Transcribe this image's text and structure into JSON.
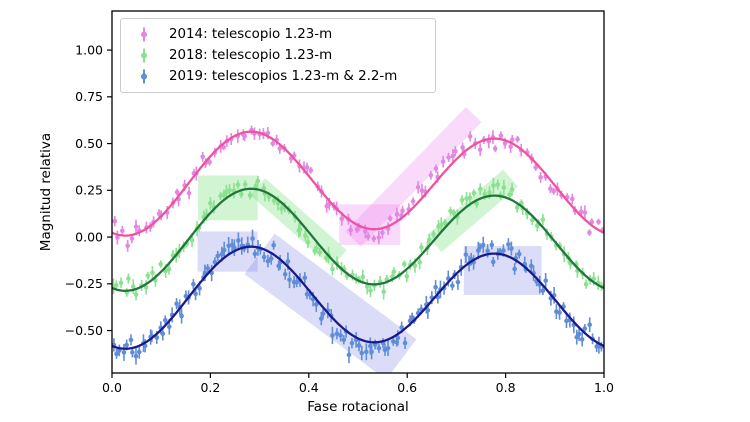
{
  "axes": {
    "xlim": [
      0.0,
      1.0
    ],
    "ylim": [
      -0.727,
      1.209
    ],
    "xticks": [
      0.0,
      0.2,
      0.4,
      0.6,
      0.8,
      1.0
    ],
    "xtick_labels": [
      "0.0",
      "0.2",
      "0.4",
      "0.6",
      "0.8",
      "1.0"
    ],
    "yticks": [
      1.0,
      0.75,
      0.5,
      0.25,
      0.0,
      -0.25,
      -0.5
    ],
    "ytick_labels": [
      "1.00",
      "0.75",
      "0.50",
      "0.25",
      "0.00",
      "−0.25",
      "−0.50"
    ]
  },
  "chart_data": {
    "type": "scatter",
    "title": "",
    "xlabel": "Fase rotacional",
    "ylabel": "Magnitud relativa",
    "legend_position": "upper left",
    "grid": false,
    "description": "Three asteroid rotational light curves (relative magnitude vs rotational phase), each with error-bar scatter points, a smooth two-maxima Fourier fit curve, and translucent highlight patches marking deviating segments.",
    "series": [
      {
        "name": "2014: telescopio 1.23-m",
        "point_color": "#e287e2",
        "curve_color": "#f0539e",
        "model": {
          "a0": 0.285,
          "A1": 0.025,
          "p1": 0.4,
          "A2": 0.26,
          "p2": 0.28
        },
        "curve_keypoints": [
          [
            0.0,
            0.02
          ],
          [
            0.28,
            0.56
          ],
          [
            0.53,
            0.05
          ],
          [
            0.78,
            0.53
          ],
          [
            1.0,
            0.02
          ]
        ],
        "n_points": 112,
        "noise": 0.024,
        "err": [
          0.016,
          0.022
        ],
        "seed": 2014,
        "deviations": [
          {
            "from": 0.44,
            "to": 0.57,
            "amp": -0.03
          },
          {
            "from": 0.56,
            "to": 0.75,
            "amp": 0.05
          }
        ]
      },
      {
        "name": "2018: telescopio 1.23-m",
        "point_color": "#8be18f",
        "curve_color": "#21763c",
        "model": {
          "a0": -0.015,
          "A1": 0.025,
          "p1": 0.4,
          "A2": 0.255,
          "p2": 0.28
        },
        "curve_keypoints": [
          [
            0.0,
            -0.27
          ],
          [
            0.28,
            0.26
          ],
          [
            0.53,
            -0.25
          ],
          [
            0.78,
            0.22
          ],
          [
            1.0,
            -0.27
          ]
        ],
        "n_points": 126,
        "noise": 0.025,
        "err": [
          0.018,
          0.025
        ],
        "seed": 2018,
        "deviations": [
          {
            "from": 0.17,
            "to": 0.31,
            "amp": 0.025
          },
          {
            "from": 0.32,
            "to": 0.47,
            "amp": -0.035
          },
          {
            "from": 0.64,
            "to": 0.82,
            "amp": 0.025
          }
        ]
      },
      {
        "name": "2019: telescopios 1.23-m & 2.2-m",
        "point_color": "#5f8dd8",
        "curve_color": "#1a1a8c",
        "model": {
          "a0": -0.325,
          "A1": 0.025,
          "p1": 0.4,
          "A2": 0.255,
          "p2": 0.28
        },
        "curve_keypoints": [
          [
            0.0,
            -0.59
          ],
          [
            0.28,
            -0.05
          ],
          [
            0.53,
            -0.55
          ],
          [
            0.78,
            -0.09
          ],
          [
            1.0,
            -0.59
          ]
        ],
        "n_points": 150,
        "noise": 0.03,
        "err": [
          0.02,
          0.028
        ],
        "seed": 2019,
        "deviations": [
          {
            "from": 0.16,
            "to": 0.31,
            "amp": 0.03
          },
          {
            "from": 0.35,
            "to": 0.6,
            "amp": -0.04
          },
          {
            "from": 0.7,
            "to": 0.88,
            "amp": 0.025
          }
        ]
      }
    ],
    "highlights": [
      {
        "series": "2014",
        "shape": "rect",
        "x0": 0.462,
        "x1": 0.586,
        "y0": -0.042,
        "y1": 0.175,
        "color": "rgba(238,132,238,0.30)"
      },
      {
        "series": "2014",
        "shape": "band",
        "x1": 0.49,
        "y1": -0.01,
        "x2": 0.735,
        "y2": 0.655,
        "hw": 0.058,
        "color": "rgba(238,132,238,0.30)"
      },
      {
        "series": "2018",
        "shape": "rect",
        "x0": 0.175,
        "x1": 0.296,
        "y0": 0.09,
        "y1": 0.33,
        "color": "rgba(134,226,140,0.38)"
      },
      {
        "series": "2018",
        "shape": "band",
        "x1": 0.296,
        "y1": 0.27,
        "x2": 0.462,
        "y2": -0.115,
        "hw": 0.06,
        "color": "rgba(134,226,140,0.38)"
      },
      {
        "series": "2018",
        "shape": "band",
        "x1": 0.655,
        "y1": -0.035,
        "x2": 0.81,
        "y2": 0.315,
        "hw": 0.06,
        "color": "rgba(134,226,140,0.38)"
      },
      {
        "series": "2019",
        "shape": "rect",
        "x0": 0.174,
        "x1": 0.296,
        "y0": -0.185,
        "y1": 0.03,
        "color": "rgba(110,116,225,0.25)"
      },
      {
        "series": "2019",
        "shape": "band",
        "x1": 0.3,
        "y1": -0.09,
        "x2": 0.588,
        "y2": -0.655,
        "hw": 0.135,
        "color": "rgba(110,116,225,0.25)"
      },
      {
        "series": "2019",
        "shape": "rect",
        "x0": 0.715,
        "x1": 0.873,
        "y0": -0.31,
        "y1": -0.048,
        "color": "rgba(110,116,225,0.25)"
      }
    ]
  }
}
